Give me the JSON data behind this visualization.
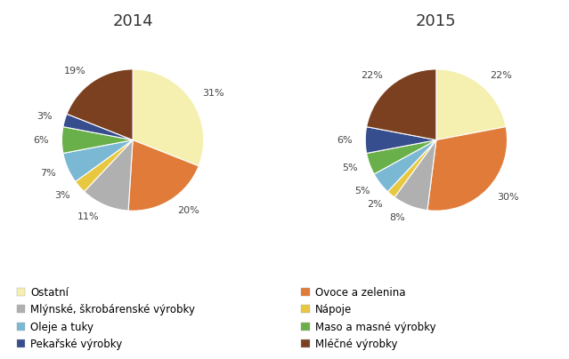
{
  "chart2014": {
    "title": "2014",
    "values": [
      31,
      20,
      11,
      3,
      7,
      6,
      3,
      19
    ],
    "labels": [
      "31%",
      "20%",
      "11%",
      "3%",
      "7%",
      "6%",
      "3%",
      "19%"
    ],
    "colors": [
      "#f5f0b0",
      "#e07b39",
      "#b0b0b0",
      "#e8c840",
      "#7ab8d4",
      "#6ab04a",
      "#364d8e",
      "#7b4020"
    ],
    "startangle": 90
  },
  "chart2015": {
    "title": "2015",
    "values": [
      22,
      30,
      8,
      2,
      5,
      5,
      6,
      22
    ],
    "labels": [
      "22%",
      "30%",
      "8%",
      "2%",
      "5%",
      "5%",
      "6%",
      "22%"
    ],
    "colors": [
      "#f5f0b0",
      "#e07b39",
      "#b0b0b0",
      "#e8c840",
      "#7ab8d4",
      "#6ab04a",
      "#364d8e",
      "#7b4020"
    ],
    "startangle": 90
  },
  "legend_left": [
    {
      "label": "Ostatní",
      "color": "#f5f0b0"
    },
    {
      "label": "Mlýnské, škroobárenské výrobky",
      "color": "#b0b0b0"
    },
    {
      "label": "Oleje a tuky",
      "color": "#7ab8d4"
    },
    {
      "label": "Pekařské výrobky",
      "color": "#364d8e"
    }
  ],
  "legend_right": [
    {
      "label": "Ovoce a zelenina",
      "color": "#e07b39"
    },
    {
      "label": "Nápoje",
      "color": "#e8c840"
    },
    {
      "label": "Maso a masné výrobky",
      "color": "#6ab04a"
    },
    {
      "label": "Mléčné výrobky",
      "color": "#7b4020"
    }
  ],
  "bg_color": "#ffffff",
  "title_fontsize": 13,
  "label_fontsize": 8,
  "legend_fontsize": 8.5
}
